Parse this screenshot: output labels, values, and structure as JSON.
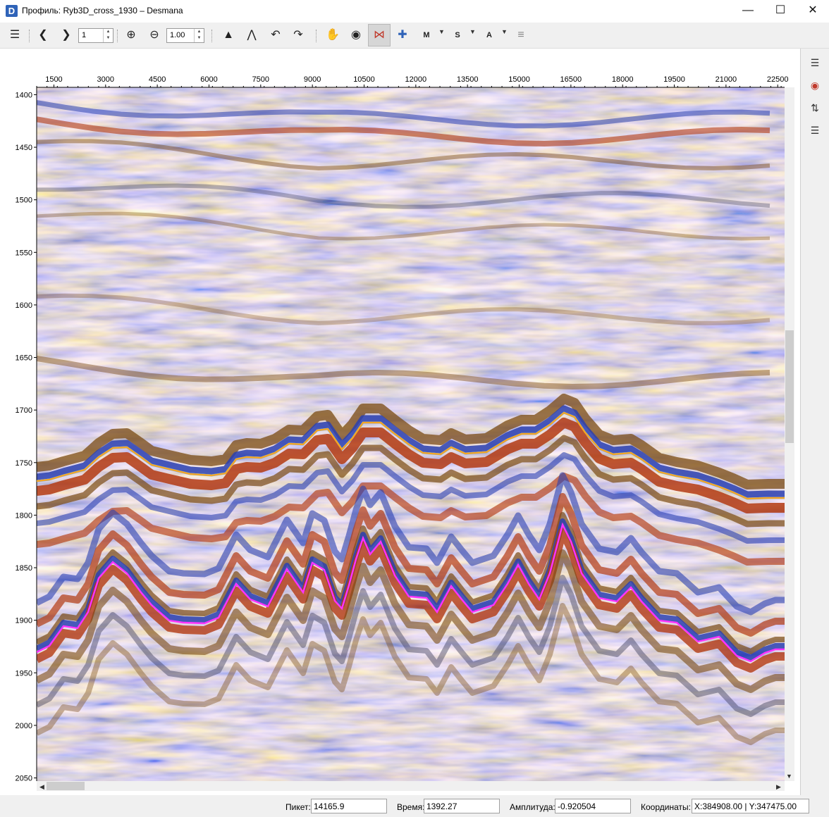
{
  "window": {
    "app_icon_letter": "D",
    "title": "Профиль: Ryb3D_cross_1930 – Desmana"
  },
  "toolbar": {
    "page_value": "1",
    "zoom_value": "1.00",
    "icons": [
      "menu-icon",
      "prev-icon",
      "next-icon",
      "zoom-in-icon",
      "zoom-out-icon",
      "wiggle-icon",
      "variable-area-icon",
      "undo-icon",
      "redo-icon",
      "pan-icon",
      "pick-icon",
      "horizon-edit-icon",
      "crosshair-icon",
      "attribute-m-icon",
      "attribute-s-icon",
      "attribute-a-icon",
      "settings-icon"
    ],
    "attr_m_label": "M",
    "attr_s_label": "S",
    "attr_a_label": "A"
  },
  "axes": {
    "x_ticks": [
      "1500",
      "3000",
      "4500",
      "6000",
      "7500",
      "9000",
      "10500",
      "12000",
      "13500",
      "15000",
      "16500",
      "18000",
      "19500",
      "21000",
      "22500"
    ],
    "y_ticks": [
      "1400",
      "1450",
      "1500",
      "1550",
      "1600",
      "1650",
      "1700",
      "1750",
      "1800",
      "1850",
      "1900",
      "1950",
      "2000",
      "2050"
    ],
    "x_range": [
      1000,
      22700
    ],
    "y_range": [
      1393,
      2053
    ]
  },
  "horizons": {
    "upper": {
      "color": "#f5a623"
    },
    "lower": {
      "color": "#ff33ff"
    }
  },
  "status": {
    "pick_label": "Пикет:",
    "pick_value": "14165.9",
    "time_label": "Время:",
    "time_value": "1392.27",
    "amp_label": "Амплитуда:",
    "amp_value": "-0.920504",
    "coord_label": "Координаты:",
    "coord_value": "X:384908.00 | Y:347475.00"
  }
}
